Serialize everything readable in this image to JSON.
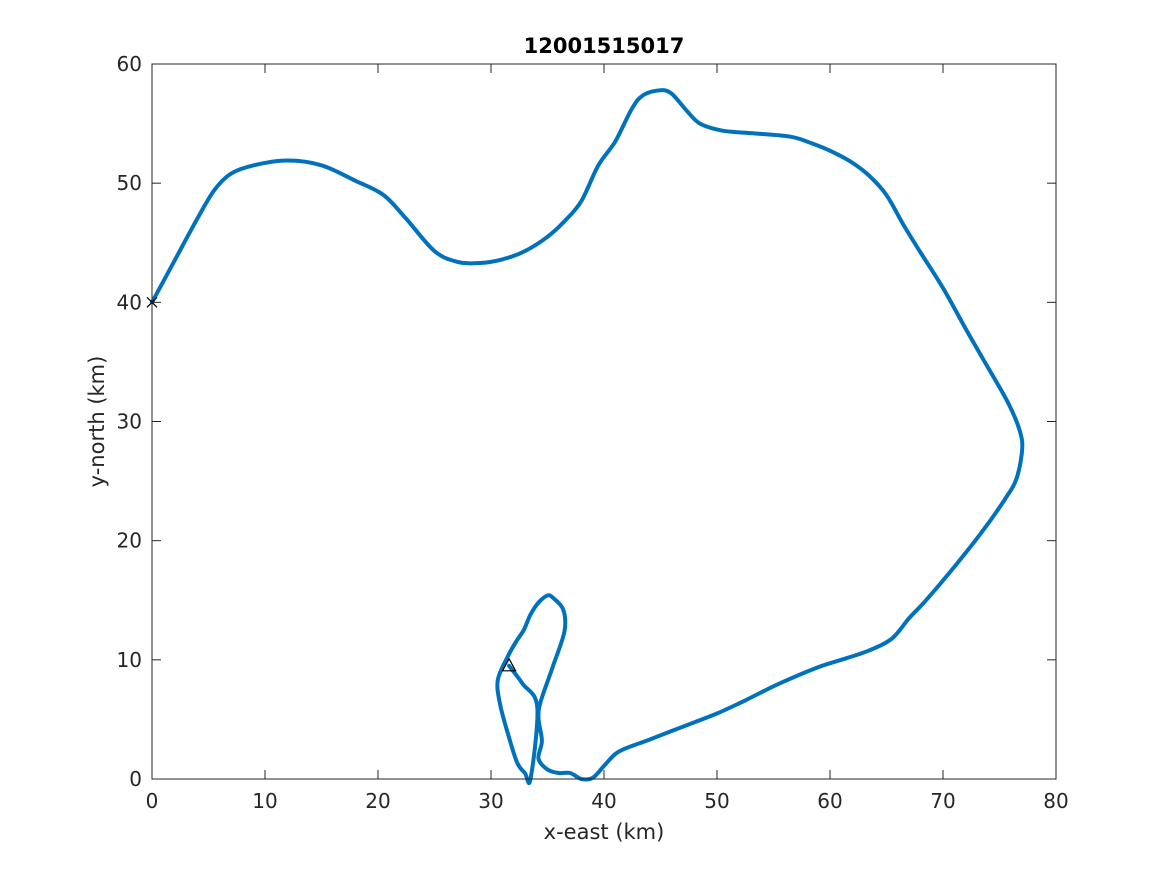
{
  "chart_data": {
    "type": "line",
    "title": "12001515017",
    "xlabel": "x-east (km)",
    "ylabel": "y-north (km)",
    "xlim": [
      0,
      80
    ],
    "ylim": [
      0,
      60
    ],
    "xticks": [
      0,
      10,
      20,
      30,
      40,
      50,
      60,
      70,
      80
    ],
    "yticks": [
      0,
      10,
      20,
      30,
      40,
      50,
      60
    ],
    "grid": false,
    "line_color": "#0072BD",
    "series": [
      {
        "x": [
          0,
          2,
          4,
          5.5,
          7,
          9,
          12,
          15,
          18,
          20.5,
          22.5,
          25,
          27,
          29,
          31,
          33,
          35,
          36.5,
          38,
          39.5,
          41,
          42.5,
          43.5,
          45,
          46,
          47.3,
          48.5,
          50.5,
          53,
          56.5,
          58.5,
          60.5,
          62,
          63.5,
          65,
          66.5,
          68,
          70,
          72,
          74,
          75.8,
          76.8,
          77,
          76.5,
          75.5,
          73.5,
          71,
          68.5,
          67,
          65.5,
          63.5,
          61,
          59,
          55.5,
          52.5,
          50,
          47,
          44,
          42,
          41,
          40,
          39,
          38,
          37,
          36,
          35,
          34.2,
          34.5,
          34.2,
          34.4,
          35.5,
          36.5,
          36.4,
          35.5,
          35,
          34.2,
          33.5,
          32.9,
          32.2,
          31.5,
          30.6,
          30.8,
          31.5,
          32.3,
          33,
          33.5,
          34.1,
          32.8,
          31.6
        ],
        "y": [
          40,
          43.5,
          47,
          49.4,
          50.8,
          51.5,
          51.9,
          51.5,
          50.2,
          49,
          47,
          44.3,
          43.4,
          43.3,
          43.6,
          44.3,
          45.5,
          46.8,
          48.5,
          51.5,
          53.5,
          56.3,
          57.4,
          57.8,
          57.5,
          56.1,
          55,
          54.4,
          54.2,
          53.9,
          53.3,
          52.5,
          51.7,
          50.6,
          49,
          46.5,
          44.2,
          41.2,
          37.8,
          34.5,
          31.5,
          29.2,
          27.6,
          25.2,
          23.5,
          20.8,
          17.8,
          15,
          13.5,
          11.8,
          10.8,
          10,
          9.4,
          8,
          6.6,
          5.5,
          4.4,
          3.3,
          2.6,
          2.1,
          1.1,
          0.1,
          0,
          0.5,
          0.5,
          0.8,
          1.7,
          3.2,
          5.1,
          6.5,
          9.5,
          12.4,
          14.2,
          15.2,
          15.4,
          14.8,
          13.8,
          12.5,
          11.5,
          10.3,
          8.3,
          6.3,
          3.8,
          1.4,
          0.5,
          0,
          6,
          8,
          9.5
        ]
      }
    ],
    "markers": [
      {
        "symbol": "×",
        "x": 0,
        "y": 40
      },
      {
        "symbol": "△",
        "x": 31.6,
        "y": 9.5
      }
    ]
  }
}
